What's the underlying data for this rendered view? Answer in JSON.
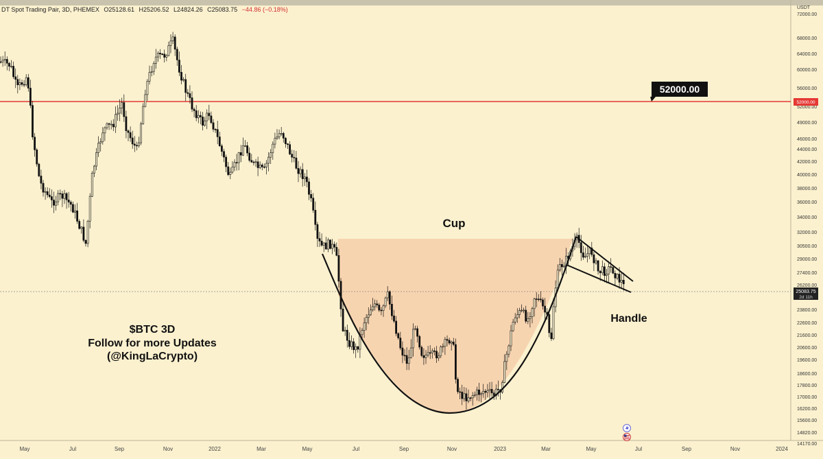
{
  "header": {
    "pair": "DT Spot Trading Pair, 3D, PHEMEX",
    "open": "O25128.61",
    "high": "H25206.52",
    "low": "L24824.26",
    "close": "C25083.75",
    "change": "−44.86 (−0.18%)"
  },
  "price_axis": {
    "currency": "USDT",
    "ticks": [
      "72000.00",
      "68000.00",
      "64000.00",
      "60000.00",
      "56000.00",
      "52000.00",
      "49000.00",
      "46000.00",
      "44000.00",
      "42000.00",
      "40000.00",
      "38000.00",
      "36000.00",
      "34000.00",
      "32000.00",
      "30500.00",
      "29000.00",
      "27400.00",
      "26200.00",
      "23800.00",
      "22600.00",
      "21600.00",
      "20600.00",
      "19600.00",
      "18600.00",
      "17800.00",
      "17000.00",
      "16200.00",
      "15600.00",
      "14820.00",
      "14170.00"
    ],
    "current_price": "25083.75",
    "countdown": "2d 11h",
    "level_badge": "52000.00"
  },
  "time_axis": {
    "labels": [
      "May",
      "Jul",
      "Sep",
      "Nov",
      "2022",
      "Mar",
      "May",
      "Jul",
      "Sep",
      "Nov",
      "2023",
      "Mar",
      "May",
      "Jul",
      "Sep",
      "Nov",
      "2024"
    ]
  },
  "annotations": {
    "level_callout": "52000.00",
    "cup_label": "Cup",
    "handle_label": "Handle",
    "caption_line1": "$BTC 3D",
    "caption_line2": "Follow for more Updates",
    "caption_line3": "(@KingLaCrypto)"
  },
  "colors": {
    "background": "#fbf1cf",
    "candle": "#111111",
    "level_line": "#e53935",
    "cup_fill": "#f6cfaa"
  },
  "chart_data": {
    "type": "candlestick",
    "title": "",
    "timeframe": "3D",
    "y_scale": "log",
    "ylim": [
      14170,
      72000
    ],
    "horizontal_level": 52000,
    "x": [
      "May 2021",
      "Jul 2021",
      "Sep 2021",
      "Nov 2021",
      "Jan 2022",
      "Mar 2022",
      "May 2022",
      "Jul 2022",
      "Sep 2022",
      "Nov 2022",
      "Jan 2023",
      "Mar 2023",
      "May 2023",
      "Jun 2023"
    ],
    "close_approx": [
      37000,
      33500,
      47000,
      66000,
      47000,
      43500,
      32000,
      20500,
      19900,
      16500,
      16800,
      22400,
      28500,
      25083.75
    ],
    "patterns": [
      {
        "name": "Cup",
        "from": "May 2022",
        "to": "Apr 2023",
        "rim": 30500,
        "bottom": 15600
      },
      {
        "name": "Handle",
        "from": "Apr 2023",
        "to": "Jun 2023",
        "type": "descending wedge",
        "top": 30800,
        "bottom": 25000
      }
    ]
  }
}
